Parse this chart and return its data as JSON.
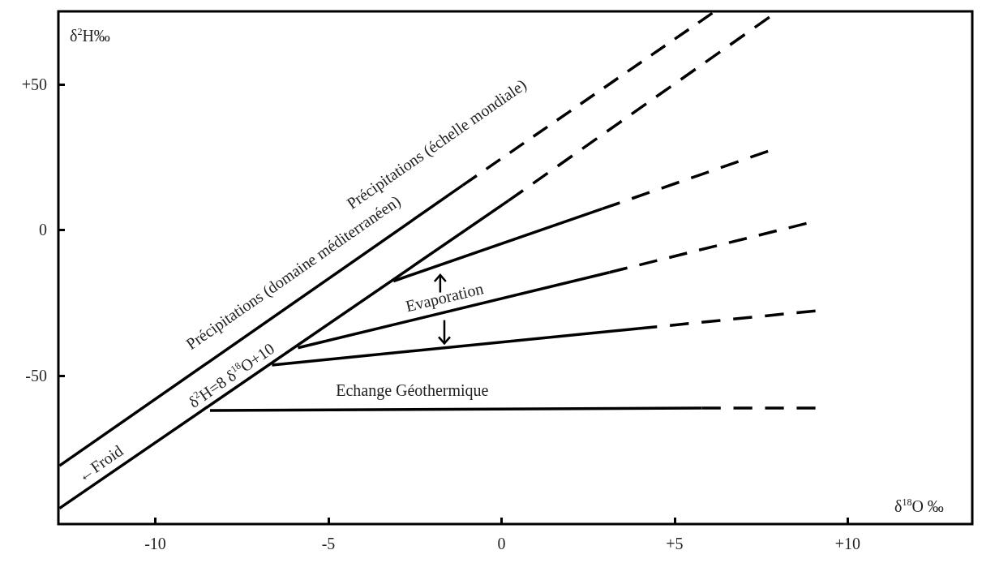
{
  "chart_data": {
    "type": "line",
    "xlabel": "δ$^{18}$O ‰",
    "ylabel": "δ$^{2}$H‰",
    "xlim": [
      -12.8,
      13.6
    ],
    "ylim": [
      -101,
      75
    ],
    "xticks": [
      -10,
      -5,
      0,
      {
        "value": 5,
        "label": "+5"
      },
      {
        "value": 10,
        "label": "+10"
      }
    ],
    "yticks": [
      -50,
      0,
      {
        "value": 50,
        "label": "+50"
      }
    ],
    "grid": false,
    "marker": "none",
    "series": [
      {
        "color": "#000000",
        "line_style": "solid",
        "x": [
          -12.77,
          -1.12
        ],
        "values": [
          -81,
          15.3
        ]
      },
      {
        "color": "#000000",
        "line_style": "dashed",
        "x": [
          -1.12,
          6.09
        ],
        "values": [
          15.3,
          74.4
        ]
      },
      {
        "color": "#000000",
        "line_style": "solid",
        "x": [
          -12.77,
          0.2
        ],
        "values": [
          -95.6,
          10
        ]
      },
      {
        "color": "#000000",
        "line_style": "dashed",
        "x": [
          0.2,
          7.74
        ],
        "values": [
          10,
          73
        ]
      },
      {
        "color": "#000000",
        "line_style": "solid",
        "x": [
          -3.12,
          2.91
        ],
        "values": [
          -17.6,
          7.2
        ]
      },
      {
        "color": "#000000",
        "line_style": "dashed",
        "x": [
          2.91,
          7.7
        ],
        "values": [
          7.2,
          27
        ]
      },
      {
        "color": "#000000",
        "line_style": "solid",
        "x": [
          -5.88,
          3.12
        ],
        "values": [
          -40.5,
          -14.6
        ]
      },
      {
        "color": "#000000",
        "line_style": "dashed",
        "x": [
          3.12,
          8.81
        ],
        "values": [
          -14.6,
          2.2
        ]
      },
      {
        "color": "#000000",
        "line_style": "solid",
        "x": [
          -6.63,
          3.95
        ],
        "values": [
          -46.4,
          -33.9
        ]
      },
      {
        "color": "#000000",
        "line_style": "dashed",
        "x": [
          3.95,
          9.07
        ],
        "values": [
          -33.9,
          -27.8
        ]
      },
      {
        "color": "#000000",
        "line_style": "solid",
        "x": [
          -8.42,
          5.79
        ],
        "values": [
          -62,
          -61.2
        ]
      },
      {
        "color": "#000000",
        "line_style": "dashed",
        "x": [
          5.79,
          9.07
        ],
        "values": [
          -61.2,
          -61.2
        ]
      }
    ],
    "annotations": [
      "Précipitations (domaine méditerranéen)",
      "Précipitations (échelle mondiale)",
      "δ$^{2}$H=8 δ$^{18}$O+10",
      "←Froid",
      "Evaporation",
      "Echange Géothermique"
    ]
  }
}
